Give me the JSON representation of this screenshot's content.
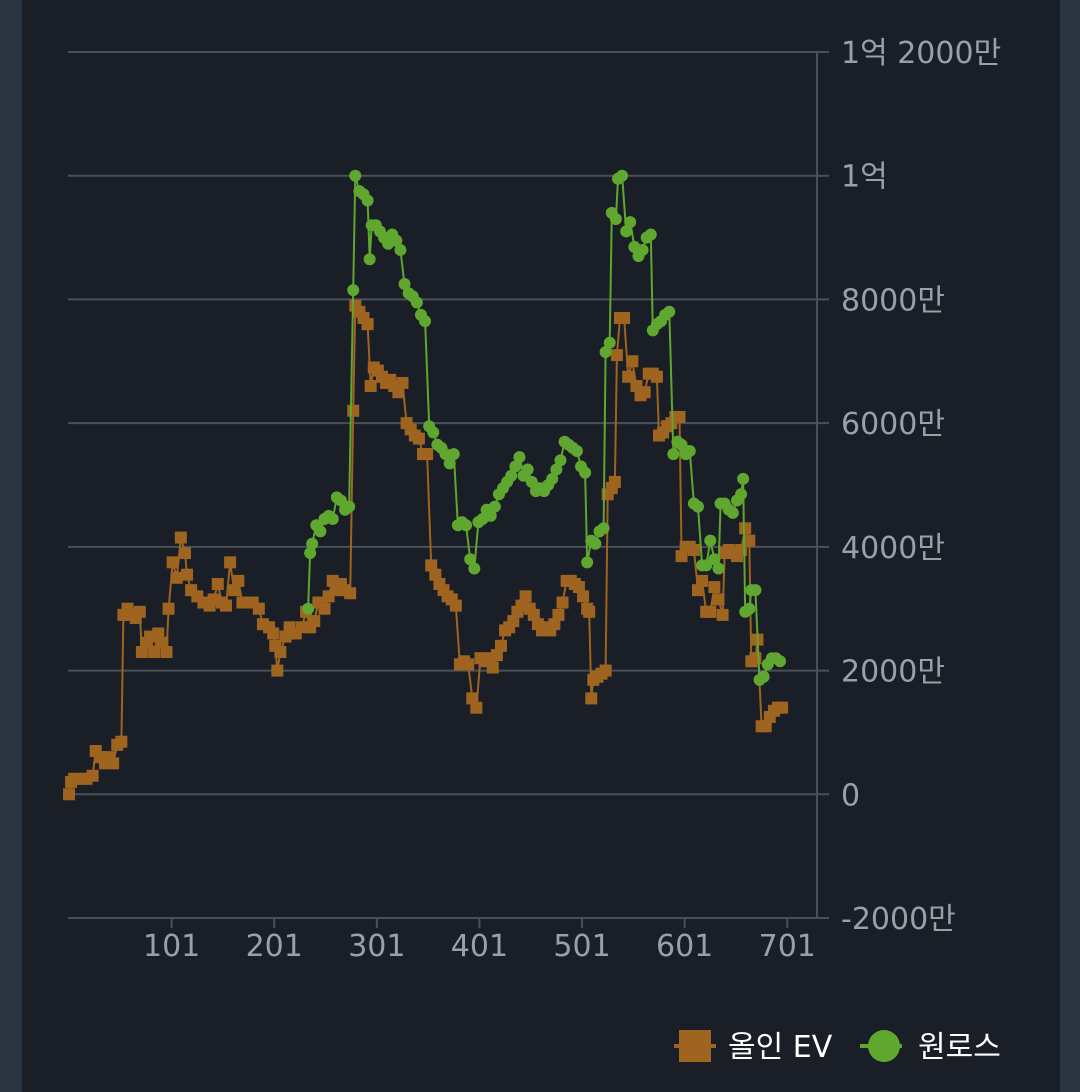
{
  "chart_data": {
    "type": "line",
    "xlabel": "",
    "ylabel": "",
    "xlim": [
      0,
      730
    ],
    "ylim": [
      -20000000,
      120000000
    ],
    "x_ticks": [
      101,
      201,
      301,
      401,
      501,
      601,
      701
    ],
    "x_tick_labels": [
      "101",
      "201",
      "301",
      "401",
      "501",
      "601",
      "701"
    ],
    "y_ticks": [
      -20000000,
      0,
      20000000,
      40000000,
      60000000,
      80000000,
      100000000,
      120000000
    ],
    "y_tick_labels": [
      "-2000만",
      "0",
      "2000만",
      "4000만",
      "6000만",
      "8000만",
      "1억",
      "1억 2000만"
    ],
    "y_axis_position": "right",
    "grid": true,
    "legend_position": "bottom-right",
    "series": [
      {
        "name": "올인 EV",
        "color": "#9e6420",
        "marker": "square",
        "points": [
          [
            1,
            0
          ],
          [
            3,
            2000000
          ],
          [
            6,
            2500000
          ],
          [
            12,
            2500000
          ],
          [
            18,
            2500000
          ],
          [
            24,
            3000000
          ],
          [
            27,
            7000000
          ],
          [
            32,
            6000000
          ],
          [
            36,
            5000000
          ],
          [
            40,
            6000000
          ],
          [
            44,
            5000000
          ],
          [
            48,
            8000000
          ],
          [
            52,
            8500000
          ],
          [
            54,
            29000000
          ],
          [
            58,
            30000000
          ],
          [
            62,
            29000000
          ],
          [
            66,
            28500000
          ],
          [
            70,
            29500000
          ],
          [
            72,
            23000000
          ],
          [
            76,
            24500000
          ],
          [
            80,
            25500000
          ],
          [
            84,
            23000000
          ],
          [
            88,
            26000000
          ],
          [
            92,
            24500000
          ],
          [
            96,
            23000000
          ],
          [
            98,
            30000000
          ],
          [
            102,
            37500000
          ],
          [
            106,
            35000000
          ],
          [
            110,
            41500000
          ],
          [
            114,
            39000000
          ],
          [
            116,
            35500000
          ],
          [
            120,
            33000000
          ],
          [
            126,
            32000000
          ],
          [
            132,
            31000000
          ],
          [
            138,
            30500000
          ],
          [
            142,
            31500000
          ],
          [
            146,
            34000000
          ],
          [
            150,
            31000000
          ],
          [
            154,
            30500000
          ],
          [
            158,
            37500000
          ],
          [
            162,
            33000000
          ],
          [
            166,
            34500000
          ],
          [
            170,
            31000000
          ],
          [
            180,
            31000000
          ],
          [
            186,
            30000000
          ],
          [
            190,
            27500000
          ],
          [
            196,
            27000000
          ],
          [
            200,
            26000000
          ],
          [
            202,
            24000000
          ],
          [
            204,
            20000000
          ],
          [
            207,
            23000000
          ],
          [
            212,
            25500000
          ],
          [
            216,
            27000000
          ],
          [
            222,
            26000000
          ],
          [
            228,
            27000000
          ],
          [
            232,
            29500000
          ],
          [
            236,
            27000000
          ],
          [
            240,
            28000000
          ],
          [
            244,
            31000000
          ],
          [
            250,
            30000000
          ],
          [
            254,
            32000000
          ],
          [
            258,
            34500000
          ],
          [
            262,
            33000000
          ],
          [
            266,
            34000000
          ],
          [
            270,
            33000000
          ],
          [
            275,
            32500000
          ],
          [
            278,
            62000000
          ],
          [
            280,
            79000000
          ],
          [
            284,
            78000000
          ],
          [
            288,
            77000000
          ],
          [
            292,
            76000000
          ],
          [
            295,
            66000000
          ],
          [
            298,
            69000000
          ],
          [
            302,
            68500000
          ],
          [
            306,
            67500000
          ],
          [
            310,
            66500000
          ],
          [
            314,
            67000000
          ],
          [
            318,
            66000000
          ],
          [
            322,
            65000000
          ],
          [
            326,
            66500000
          ],
          [
            330,
            60000000
          ],
          [
            334,
            59000000
          ],
          [
            338,
            58000000
          ],
          [
            342,
            57500000
          ],
          [
            346,
            55000000
          ],
          [
            350,
            55000000
          ],
          [
            354,
            37000000
          ],
          [
            358,
            35500000
          ],
          [
            362,
            34000000
          ],
          [
            366,
            33000000
          ],
          [
            370,
            32000000
          ],
          [
            374,
            31500000
          ],
          [
            378,
            30500000
          ],
          [
            382,
            21000000
          ],
          [
            386,
            21500000
          ],
          [
            390,
            21000000
          ],
          [
            394,
            15500000
          ],
          [
            398,
            14000000
          ],
          [
            402,
            22000000
          ],
          [
            406,
            21500000
          ],
          [
            410,
            22000000
          ],
          [
            414,
            20500000
          ],
          [
            418,
            22500000
          ],
          [
            422,
            24000000
          ],
          [
            426,
            26500000
          ],
          [
            430,
            27000000
          ],
          [
            434,
            28000000
          ],
          [
            438,
            29500000
          ],
          [
            442,
            30500000
          ],
          [
            446,
            32000000
          ],
          [
            450,
            30000000
          ],
          [
            454,
            29000000
          ],
          [
            458,
            27500000
          ],
          [
            462,
            26500000
          ],
          [
            466,
            27000000
          ],
          [
            470,
            26500000
          ],
          [
            474,
            27500000
          ],
          [
            478,
            29000000
          ],
          [
            482,
            31000000
          ],
          [
            486,
            34500000
          ],
          [
            490,
            34500000
          ],
          [
            494,
            34000000
          ],
          [
            498,
            33500000
          ],
          [
            502,
            32000000
          ],
          [
            506,
            30000000
          ],
          [
            508,
            29500000
          ],
          [
            510,
            15500000
          ],
          [
            512,
            18500000
          ],
          [
            516,
            19000000
          ],
          [
            520,
            19500000
          ],
          [
            524,
            20000000
          ],
          [
            526,
            48500000
          ],
          [
            530,
            49500000
          ],
          [
            533,
            50500000
          ],
          [
            535,
            71000000
          ],
          [
            538,
            77000000
          ],
          [
            542,
            77000000
          ],
          [
            546,
            67500000
          ],
          [
            550,
            70000000
          ],
          [
            554,
            66000000
          ],
          [
            558,
            64500000
          ],
          [
            562,
            65000000
          ],
          [
            566,
            68000000
          ],
          [
            570,
            68000000
          ],
          [
            574,
            67500000
          ],
          [
            576,
            58000000
          ],
          [
            580,
            58500000
          ],
          [
            584,
            59500000
          ],
          [
            588,
            60000000
          ],
          [
            592,
            61000000
          ],
          [
            596,
            61000000
          ],
          [
            598,
            38500000
          ],
          [
            602,
            40000000
          ],
          [
            606,
            40000000
          ],
          [
            610,
            39500000
          ],
          [
            614,
            33000000
          ],
          [
            618,
            34500000
          ],
          [
            622,
            29500000
          ],
          [
            626,
            29500000
          ],
          [
            630,
            33500000
          ],
          [
            634,
            31500000
          ],
          [
            638,
            29000000
          ],
          [
            640,
            39000000
          ],
          [
            644,
            39500000
          ],
          [
            648,
            39000000
          ],
          [
            652,
            38500000
          ],
          [
            656,
            39500000
          ],
          [
            660,
            43000000
          ],
          [
            664,
            41000000
          ],
          [
            666,
            21500000
          ],
          [
            670,
            22000000
          ],
          [
            672,
            25000000
          ],
          [
            676,
            11000000
          ],
          [
            680,
            11000000
          ],
          [
            684,
            12500000
          ],
          [
            688,
            13500000
          ],
          [
            692,
            14000000
          ],
          [
            696,
            14000000
          ]
        ]
      },
      {
        "name": "원로스",
        "color": "#5fa72e",
        "marker": "circle",
        "points": [
          [
            234,
            30000000
          ],
          [
            236,
            39000000
          ],
          [
            238,
            40500000
          ],
          [
            242,
            43500000
          ],
          [
            246,
            42500000
          ],
          [
            250,
            44500000
          ],
          [
            254,
            45000000
          ],
          [
            258,
            44500000
          ],
          [
            262,
            48000000
          ],
          [
            266,
            47500000
          ],
          [
            270,
            46000000
          ],
          [
            274,
            46500000
          ],
          [
            278,
            81500000
          ],
          [
            280,
            100000000
          ],
          [
            284,
            97500000
          ],
          [
            288,
            97000000
          ],
          [
            292,
            96000000
          ],
          [
            294,
            86500000
          ],
          [
            296,
            92000000
          ],
          [
            300,
            92000000
          ],
          [
            304,
            91000000
          ],
          [
            308,
            90000000
          ],
          [
            312,
            89000000
          ],
          [
            316,
            90500000
          ],
          [
            320,
            89500000
          ],
          [
            324,
            88000000
          ],
          [
            328,
            82500000
          ],
          [
            332,
            81000000
          ],
          [
            336,
            80500000
          ],
          [
            340,
            79500000
          ],
          [
            344,
            77500000
          ],
          [
            348,
            76500000
          ],
          [
            352,
            59500000
          ],
          [
            356,
            58500000
          ],
          [
            360,
            56500000
          ],
          [
            364,
            56000000
          ],
          [
            368,
            55000000
          ],
          [
            372,
            53500000
          ],
          [
            376,
            55000000
          ],
          [
            380,
            43500000
          ],
          [
            384,
            44000000
          ],
          [
            388,
            43500000
          ],
          [
            392,
            38000000
          ],
          [
            396,
            36500000
          ],
          [
            400,
            44000000
          ],
          [
            404,
            44500000
          ],
          [
            408,
            46000000
          ],
          [
            412,
            45000000
          ],
          [
            416,
            46500000
          ],
          [
            420,
            48500000
          ],
          [
            424,
            49500000
          ],
          [
            428,
            50500000
          ],
          [
            432,
            51500000
          ],
          [
            436,
            53000000
          ],
          [
            440,
            54500000
          ],
          [
            444,
            51500000
          ],
          [
            448,
            52500000
          ],
          [
            452,
            50500000
          ],
          [
            456,
            49000000
          ],
          [
            460,
            49500000
          ],
          [
            464,
            49000000
          ],
          [
            468,
            50000000
          ],
          [
            472,
            51000000
          ],
          [
            476,
            52500000
          ],
          [
            480,
            54000000
          ],
          [
            484,
            57000000
          ],
          [
            488,
            56500000
          ],
          [
            492,
            56000000
          ],
          [
            496,
            55500000
          ],
          [
            500,
            53000000
          ],
          [
            504,
            52000000
          ],
          [
            506,
            37500000
          ],
          [
            510,
            41000000
          ],
          [
            514,
            40500000
          ],
          [
            518,
            42500000
          ],
          [
            522,
            43000000
          ],
          [
            524,
            71500000
          ],
          [
            528,
            73000000
          ],
          [
            530,
            94000000
          ],
          [
            534,
            93000000
          ],
          [
            536,
            99500000
          ],
          [
            540,
            100000000
          ],
          [
            544,
            91000000
          ],
          [
            548,
            92500000
          ],
          [
            552,
            88500000
          ],
          [
            556,
            87000000
          ],
          [
            560,
            88000000
          ],
          [
            564,
            90000000
          ],
          [
            568,
            90500000
          ],
          [
            570,
            75000000
          ],
          [
            574,
            76000000
          ],
          [
            578,
            76500000
          ],
          [
            582,
            77500000
          ],
          [
            586,
            78000000
          ],
          [
            590,
            55000000
          ],
          [
            594,
            57000000
          ],
          [
            598,
            56500000
          ],
          [
            602,
            55000000
          ],
          [
            606,
            55500000
          ],
          [
            610,
            47000000
          ],
          [
            614,
            46500000
          ],
          [
            618,
            37000000
          ],
          [
            622,
            37000000
          ],
          [
            626,
            41000000
          ],
          [
            630,
            38000000
          ],
          [
            634,
            36500000
          ],
          [
            636,
            47000000
          ],
          [
            640,
            47000000
          ],
          [
            644,
            46000000
          ],
          [
            648,
            45500000
          ],
          [
            652,
            47500000
          ],
          [
            656,
            48500000
          ],
          [
            658,
            51000000
          ],
          [
            660,
            29500000
          ],
          [
            664,
            30000000
          ],
          [
            666,
            33000000
          ],
          [
            670,
            33000000
          ],
          [
            674,
            18500000
          ],
          [
            678,
            19000000
          ],
          [
            682,
            21000000
          ],
          [
            686,
            22000000
          ],
          [
            690,
            22000000
          ],
          [
            694,
            21500000
          ]
        ]
      }
    ]
  }
}
